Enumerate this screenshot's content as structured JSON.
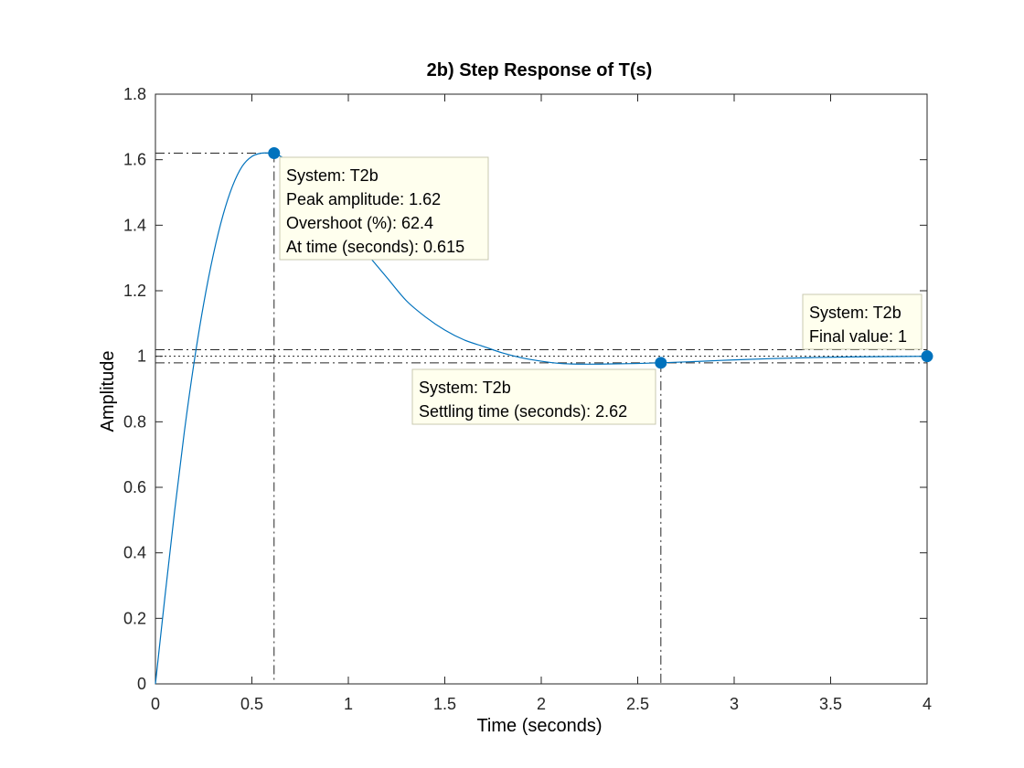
{
  "chart_data": {
    "type": "line",
    "title": "2b) Step Response of T(s)",
    "xlabel": "Time (seconds)",
    "ylabel": "Amplitude",
    "xlim": [
      0,
      4
    ],
    "ylim": [
      0,
      1.8
    ],
    "xticks": [
      "0",
      "0.5",
      "1",
      "1.5",
      "2",
      "2.5",
      "3",
      "3.5",
      "4"
    ],
    "yticks": [
      "0",
      "0.2",
      "0.4",
      "0.6",
      "0.8",
      "1",
      "1.2",
      "1.4",
      "1.6",
      "1.8"
    ],
    "grid": false,
    "series": [
      {
        "color": "#0072BD",
        "x": [
          0,
          0.05,
          0.1,
          0.15,
          0.2,
          0.25,
          0.3,
          0.35,
          0.4,
          0.45,
          0.5,
          0.55,
          0.6,
          0.615,
          0.65,
          0.7,
          0.75,
          0.8,
          0.9,
          1.0,
          1.1,
          1.2,
          1.3,
          1.4,
          1.5,
          1.6,
          1.7,
          1.8,
          1.9,
          2.0,
          2.1,
          2.2,
          2.3,
          2.4,
          2.5,
          2.62,
          2.8,
          3.0,
          3.2,
          3.4,
          3.6,
          3.8,
          4.0
        ],
        "y": [
          0,
          0.27,
          0.53,
          0.77,
          0.98,
          1.16,
          1.31,
          1.43,
          1.52,
          1.58,
          1.61,
          1.62,
          1.62,
          1.62,
          1.61,
          1.59,
          1.56,
          1.53,
          1.46,
          1.38,
          1.31,
          1.24,
          1.17,
          1.12,
          1.08,
          1.05,
          1.03,
          1.01,
          0.995,
          0.985,
          0.978,
          0.976,
          0.976,
          0.977,
          0.978,
          0.98,
          0.984,
          0.989,
          0.993,
          0.996,
          0.998,
          0.999,
          1.0
        ]
      }
    ],
    "reference_lines": {
      "settling_band_upper": 1.02,
      "settling_band_lower": 0.98,
      "final_value_line": 1.0,
      "peak_time": 0.615,
      "peak_value": 1.62,
      "settling_time": 2.62
    },
    "markers": [
      {
        "x": 0.615,
        "y": 1.62
      },
      {
        "x": 2.62,
        "y": 0.98
      },
      {
        "x": 4.0,
        "y": 1.0
      }
    ],
    "datatips": [
      {
        "lines": [
          "System: T2b",
          "Peak amplitude: 1.62",
          "Overshoot (%): 62.4",
          "At time (seconds): 0.615"
        ]
      },
      {
        "lines": [
          "System: T2b",
          "Settling time (seconds): 2.62"
        ]
      },
      {
        "lines": [
          "System: T2b",
          "Final value: 1"
        ]
      }
    ],
    "colors": {
      "line": "#0072BD",
      "marker": "#0072BD",
      "datatip_bg": "#FFFFEE",
      "datatip_border": "#C9C9B0",
      "ref_line": "#262626"
    }
  }
}
